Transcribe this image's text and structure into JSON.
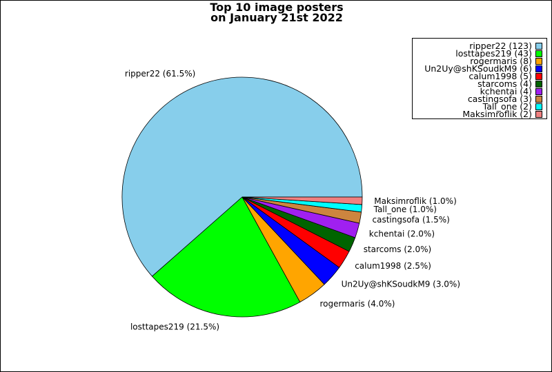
{
  "chart_data": {
    "type": "pie",
    "title_lines": [
      "Top 10 image posters",
      "on January 21st 2022"
    ],
    "slices": [
      {
        "name": "ripper22",
        "count": 123,
        "percent": 61.5,
        "color": "#87CEEB",
        "legend_label": "ripper22 (123)",
        "slice_label": "ripper22 (61.5%)"
      },
      {
        "name": "losttapes219",
        "count": 43,
        "percent": 21.5,
        "color": "#00FF00",
        "legend_label": "losttapes219 (43)",
        "slice_label": "losttapes219 (21.5%)"
      },
      {
        "name": "rogermaris",
        "count": 8,
        "percent": 4.0,
        "color": "#FFA500",
        "legend_label": "rogermaris (8)",
        "slice_label": "rogermaris (4.0%)"
      },
      {
        "name": "Un2Uy@shKSoudkM9",
        "count": 6,
        "percent": 3.0,
        "color": "#0000FF",
        "legend_label": "Un2Uy@shKSoudkM9 (6)",
        "slice_label": "Un2Uy@shKSoudkM9 (3.0%)"
      },
      {
        "name": "calum1998",
        "count": 5,
        "percent": 2.5,
        "color": "#FF0000",
        "legend_label": "calum1998 (5)",
        "slice_label": "calum1998 (2.5%)"
      },
      {
        "name": "starcoms",
        "count": 4,
        "percent": 2.0,
        "color": "#006400",
        "legend_label": "starcoms (4)",
        "slice_label": "starcoms (2.0%)"
      },
      {
        "name": "kchentai",
        "count": 4,
        "percent": 2.0,
        "color": "#A020F0",
        "legend_label": "kchentai (4)",
        "slice_label": "kchentai (2.0%)"
      },
      {
        "name": "castingsofa",
        "count": 3,
        "percent": 1.5,
        "color": "#CD853F",
        "legend_label": "castingsofa (3)",
        "slice_label": "castingsofa (1.5%)"
      },
      {
        "name": "Tall_one",
        "count": 2,
        "percent": 1.0,
        "color": "#00FFFF",
        "legend_label": "Tall_one (2)",
        "slice_label": "Tall_one (1.0%)"
      },
      {
        "name": "Maksimroflik",
        "count": 2,
        "percent": 1.0,
        "color": "#F08080",
        "legend_label": "Maksimroflik (2)",
        "slice_label": "Maksimroflik (1.0%)"
      }
    ],
    "start_angle": "3 o'clock, counter-clockwise",
    "legend_position": "top-right"
  }
}
